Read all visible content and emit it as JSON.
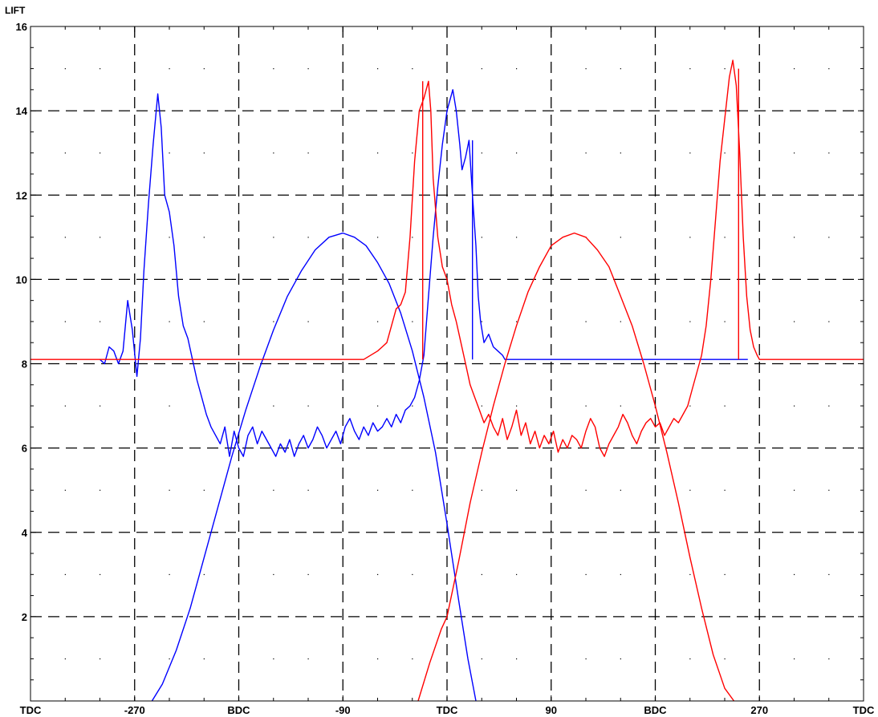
{
  "chart_data": {
    "type": "line",
    "title": "",
    "ylabel": "LIFT",
    "xlabel": "",
    "xlim": [
      -360,
      360
    ],
    "ylim": [
      0,
      16
    ],
    "x_ticks": [
      {
        "value": -360,
        "label": "TDC"
      },
      {
        "value": -270,
        "label": "-270"
      },
      {
        "value": -180,
        "label": "BDC"
      },
      {
        "value": -90,
        "label": "-90"
      },
      {
        "value": 0,
        "label": "TDC"
      },
      {
        "value": 90,
        "label": "90"
      },
      {
        "value": 180,
        "label": "BDC"
      },
      {
        "value": 270,
        "label": "270"
      },
      {
        "value": 360,
        "label": "TDC"
      }
    ],
    "y_ticks": [
      {
        "value": 2,
        "label": "2"
      },
      {
        "value": 4,
        "label": "4"
      },
      {
        "value": 6,
        "label": "6"
      },
      {
        "value": 8,
        "label": "8"
      },
      {
        "value": 10,
        "label": "10"
      },
      {
        "value": 12,
        "label": "12"
      },
      {
        "value": 14,
        "label": "14"
      },
      {
        "value": 16,
        "label": "16"
      }
    ],
    "grid": {
      "major": "dashed",
      "minor": "dotted"
    },
    "series": [
      {
        "color": "#0000ff",
        "points": [
          [
            -255,
            0
          ],
          [
            -246,
            0.4
          ],
          [
            -234,
            1.2
          ],
          [
            -222,
            2.2
          ],
          [
            -210,
            3.4
          ],
          [
            -198,
            4.6
          ],
          [
            -186,
            5.8
          ],
          [
            -174,
            6.9
          ],
          [
            -162,
            7.9
          ],
          [
            -150,
            8.8
          ],
          [
            -138,
            9.6
          ],
          [
            -126,
            10.2
          ],
          [
            -114,
            10.7
          ],
          [
            -102,
            11.0
          ],
          [
            -90,
            11.1
          ],
          [
            -80,
            11.0
          ],
          [
            -70,
            10.8
          ],
          [
            -60,
            10.4
          ],
          [
            -50,
            9.9
          ],
          [
            -40,
            9.2
          ],
          [
            -30,
            8.3
          ],
          [
            -20,
            7.2
          ],
          [
            -10,
            5.9
          ],
          [
            0,
            4.2
          ],
          [
            10,
            2.4
          ],
          [
            18,
            1.0
          ],
          [
            25,
            0
          ]
        ]
      },
      {
        "color": "#0000ff",
        "points": [
          [
            -300,
            8.1
          ],
          [
            -296,
            8.0
          ],
          [
            -292,
            8.4
          ],
          [
            -288,
            8.3
          ],
          [
            -284,
            8.0
          ],
          [
            -280,
            8.3
          ],
          [
            -276,
            9.5
          ],
          [
            -272,
            8.8
          ],
          [
            -268,
            7.7
          ],
          [
            -265,
            8.6
          ],
          [
            -262,
            10.2
          ],
          [
            -258,
            11.8
          ],
          [
            -254,
            13.2
          ],
          [
            -250,
            14.4
          ],
          [
            -247,
            13.6
          ],
          [
            -244,
            12.0
          ],
          [
            -240,
            11.6
          ],
          [
            -236,
            10.8
          ],
          [
            -232,
            9.6
          ],
          [
            -228,
            8.9
          ],
          [
            -224,
            8.6
          ],
          [
            -220,
            8.1
          ],
          [
            -216,
            7.6
          ],
          [
            -212,
            7.2
          ],
          [
            -208,
            6.8
          ],
          [
            -204,
            6.5
          ],
          [
            -200,
            6.3
          ],
          [
            -196,
            6.1
          ],
          [
            -192,
            6.5
          ],
          [
            -188,
            5.8
          ],
          [
            -184,
            6.4
          ],
          [
            -180,
            6.0
          ],
          [
            -176,
            5.8
          ],
          [
            -172,
            6.3
          ],
          [
            -168,
            6.5
          ],
          [
            -164,
            6.1
          ],
          [
            -160,
            6.4
          ],
          [
            -156,
            6.2
          ],
          [
            -152,
            6.0
          ],
          [
            -148,
            5.8
          ],
          [
            -144,
            6.1
          ],
          [
            -140,
            5.9
          ],
          [
            -136,
            6.2
          ],
          [
            -132,
            5.8
          ],
          [
            -128,
            6.1
          ],
          [
            -124,
            6.3
          ],
          [
            -120,
            6.0
          ],
          [
            -116,
            6.2
          ],
          [
            -112,
            6.5
          ],
          [
            -108,
            6.3
          ],
          [
            -104,
            6.0
          ],
          [
            -100,
            6.2
          ],
          [
            -96,
            6.4
          ],
          [
            -92,
            6.1
          ],
          [
            -88,
            6.5
          ],
          [
            -84,
            6.7
          ],
          [
            -80,
            6.4
          ],
          [
            -76,
            6.2
          ],
          [
            -72,
            6.5
          ],
          [
            -68,
            6.3
          ],
          [
            -64,
            6.6
          ],
          [
            -60,
            6.4
          ],
          [
            -56,
            6.5
          ],
          [
            -52,
            6.7
          ],
          [
            -48,
            6.5
          ],
          [
            -44,
            6.8
          ],
          [
            -40,
            6.6
          ],
          [
            -36,
            6.9
          ],
          [
            -32,
            7.0
          ],
          [
            -28,
            7.2
          ],
          [
            -24,
            7.6
          ],
          [
            -20,
            8.2
          ],
          [
            -16,
            9.6
          ],
          [
            -12,
            11.0
          ],
          [
            -8,
            12.2
          ],
          [
            -4,
            13.2
          ],
          [
            0,
            14.0
          ],
          [
            3,
            14.3
          ],
          [
            5,
            14.5
          ],
          [
            8,
            14.0
          ],
          [
            11,
            13.2
          ],
          [
            13,
            12.6
          ],
          [
            16,
            12.9
          ],
          [
            19,
            13.3
          ],
          [
            22,
            12.0
          ],
          [
            25,
            10.8
          ],
          [
            27,
            9.6
          ],
          [
            29,
            9.0
          ],
          [
            32,
            8.5
          ],
          [
            36,
            8.7
          ],
          [
            40,
            8.4
          ],
          [
            44,
            8.3
          ],
          [
            48,
            8.2
          ],
          [
            50,
            8.1
          ],
          [
            60,
            8.1
          ],
          [
            100,
            8.1
          ],
          [
            160,
            8.1
          ],
          [
            200,
            8.1
          ],
          [
            240,
            8.1
          ],
          [
            260,
            8.1
          ]
        ]
      },
      {
        "color": "#ff0000",
        "points": [
          [
            -25,
            0
          ],
          [
            -15,
            0.9
          ],
          [
            -5,
            1.7
          ],
          [
            0,
            2.0
          ],
          [
            10,
            3.3
          ],
          [
            20,
            4.7
          ],
          [
            30,
            5.9
          ],
          [
            40,
            7.0
          ],
          [
            50,
            8.0
          ],
          [
            60,
            8.9
          ],
          [
            70,
            9.7
          ],
          [
            80,
            10.3
          ],
          [
            90,
            10.8
          ],
          [
            100,
            11.0
          ],
          [
            110,
            11.1
          ],
          [
            120,
            11.0
          ],
          [
            130,
            10.7
          ],
          [
            140,
            10.3
          ],
          [
            150,
            9.6
          ],
          [
            160,
            8.9
          ],
          [
            170,
            8.0
          ],
          [
            180,
            7.0
          ],
          [
            190,
            5.9
          ],
          [
            200,
            4.7
          ],
          [
            210,
            3.4
          ],
          [
            220,
            2.2
          ],
          [
            230,
            1.1
          ],
          [
            240,
            0.3
          ],
          [
            248,
            0
          ]
        ]
      },
      {
        "color": "#ff0000",
        "points": [
          [
            -360,
            8.1
          ],
          [
            -300,
            8.1
          ],
          [
            -240,
            8.1
          ],
          [
            -180,
            8.1
          ],
          [
            -120,
            8.1
          ],
          [
            -72,
            8.1
          ],
          [
            -60,
            8.3
          ],
          [
            -56,
            8.4
          ],
          [
            -52,
            8.5
          ],
          [
            -48,
            8.9
          ],
          [
            -44,
            9.3
          ],
          [
            -40,
            9.4
          ],
          [
            -36,
            9.7
          ],
          [
            -32,
            11.0
          ],
          [
            -28,
            12.8
          ],
          [
            -24,
            14.0
          ],
          [
            -20,
            14.3
          ],
          [
            -16,
            14.7
          ],
          [
            -14,
            14.0
          ],
          [
            -12,
            12.4
          ],
          [
            -8,
            11.0
          ],
          [
            -4,
            10.3
          ],
          [
            0,
            10.0
          ],
          [
            4,
            9.4
          ],
          [
            8,
            9.0
          ],
          [
            12,
            8.5
          ],
          [
            16,
            8.0
          ],
          [
            20,
            7.5
          ],
          [
            24,
            7.2
          ],
          [
            28,
            6.9
          ],
          [
            32,
            6.6
          ],
          [
            36,
            6.8
          ],
          [
            40,
            6.5
          ],
          [
            44,
            6.3
          ],
          [
            48,
            6.7
          ],
          [
            52,
            6.2
          ],
          [
            56,
            6.5
          ],
          [
            60,
            6.9
          ],
          [
            64,
            6.3
          ],
          [
            68,
            6.6
          ],
          [
            72,
            6.1
          ],
          [
            76,
            6.4
          ],
          [
            80,
            6.0
          ],
          [
            84,
            6.3
          ],
          [
            88,
            6.1
          ],
          [
            92,
            6.4
          ],
          [
            96,
            5.9
          ],
          [
            100,
            6.2
          ],
          [
            104,
            6.0
          ],
          [
            108,
            6.3
          ],
          [
            112,
            6.2
          ],
          [
            116,
            6.0
          ],
          [
            120,
            6.4
          ],
          [
            124,
            6.7
          ],
          [
            128,
            6.5
          ],
          [
            132,
            6.0
          ],
          [
            136,
            5.8
          ],
          [
            140,
            6.1
          ],
          [
            144,
            6.3
          ],
          [
            148,
            6.5
          ],
          [
            152,
            6.8
          ],
          [
            156,
            6.6
          ],
          [
            160,
            6.3
          ],
          [
            164,
            6.1
          ],
          [
            168,
            6.4
          ],
          [
            172,
            6.6
          ],
          [
            176,
            6.7
          ],
          [
            180,
            6.5
          ],
          [
            184,
            6.6
          ],
          [
            188,
            6.3
          ],
          [
            192,
            6.5
          ],
          [
            196,
            6.7
          ],
          [
            200,
            6.6
          ],
          [
            204,
            6.8
          ],
          [
            208,
            7.0
          ],
          [
            212,
            7.4
          ],
          [
            216,
            7.8
          ],
          [
            220,
            8.2
          ],
          [
            224,
            8.9
          ],
          [
            228,
            10.0
          ],
          [
            232,
            11.4
          ],
          [
            236,
            12.8
          ],
          [
            240,
            13.8
          ],
          [
            244,
            14.8
          ],
          [
            247,
            15.2
          ],
          [
            250,
            14.6
          ],
          [
            253,
            13.0
          ],
          [
            256,
            11.0
          ],
          [
            259,
            9.6
          ],
          [
            262,
            8.8
          ],
          [
            265,
            8.4
          ],
          [
            268,
            8.2
          ],
          [
            270,
            8.1
          ],
          [
            300,
            8.1
          ],
          [
            360,
            8.1
          ]
        ]
      },
      {
        "color": "#ff0000",
        "points": [
          [
            -21,
            8.1
          ],
          [
            -21,
            14.7
          ]
        ]
      },
      {
        "color": "#0000ff",
        "points": [
          [
            22,
            8.1
          ],
          [
            22,
            13.3
          ]
        ]
      },
      {
        "color": "#ff0000",
        "points": [
          [
            252,
            8.1
          ],
          [
            252,
            15.0
          ]
        ]
      }
    ]
  }
}
